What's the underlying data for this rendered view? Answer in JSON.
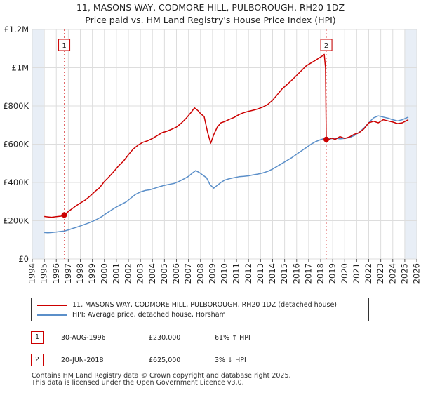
{
  "chart_data": {
    "type": "line",
    "title_line1": "11, MASONS WAY, CODMORE HILL, PULBOROUGH, RH20 1DZ",
    "title_line2": "Price paid vs. HM Land Registry's House Price Index (HPI)",
    "xlim": [
      1994,
      2026
    ],
    "ylim": [
      0,
      1200000
    ],
    "x_ticks": [
      "1994",
      "1995",
      "1996",
      "1997",
      "1998",
      "1999",
      "2000",
      "2001",
      "2002",
      "2003",
      "2004",
      "2005",
      "2006",
      "2007",
      "2008",
      "2009",
      "2010",
      "2011",
      "2012",
      "2013",
      "2014",
      "2015",
      "2016",
      "2017",
      "2018",
      "2019",
      "2020",
      "2021",
      "2022",
      "2023",
      "2024",
      "2025",
      "2026"
    ],
    "y_ticks": [
      {
        "value": 0,
        "label": "£0"
      },
      {
        "value": 200000,
        "label": "£200K"
      },
      {
        "value": 400000,
        "label": "£400K"
      },
      {
        "value": 600000,
        "label": "£600K"
      },
      {
        "value": 800000,
        "label": "£800K"
      },
      {
        "value": 1000000,
        "label": "£1M"
      },
      {
        "value": 1200000,
        "label": "£1.2M"
      }
    ],
    "grid": true,
    "series": [
      {
        "name": "11, MASONS WAY, CODMORE HILL, PULBOROUGH, RH20 1DZ (detached house)",
        "color": "#cc0000",
        "x": [
          1995.0,
          1995.3,
          1995.6,
          1996.0,
          1996.4,
          1996.66,
          1997.0,
          1997.3,
          1997.6,
          1998.0,
          1998.4,
          1998.8,
          1999.2,
          1999.6,
          2000.0,
          2000.4,
          2000.8,
          2001.2,
          2001.6,
          2002.0,
          2002.4,
          2002.8,
          2003.2,
          2003.6,
          2004.0,
          2004.4,
          2004.8,
          2005.2,
          2005.6,
          2006.0,
          2006.4,
          2006.8,
          2007.2,
          2007.5,
          2007.8,
          2008.0,
          2008.3,
          2008.6,
          2008.85,
          2009.1,
          2009.4,
          2009.7,
          2010.0,
          2010.4,
          2010.8,
          2011.2,
          2011.6,
          2012.0,
          2012.4,
          2012.8,
          2013.2,
          2013.6,
          2014.0,
          2014.4,
          2014.8,
          2015.2,
          2015.6,
          2016.0,
          2016.4,
          2016.8,
          2017.2,
          2017.6,
          2017.9,
          2018.1,
          2018.3,
          2018.4,
          2018.47,
          2018.6,
          2018.9,
          2019.2,
          2019.6,
          2020.0,
          2020.4,
          2020.8,
          2021.2,
          2021.6,
          2022.0,
          2022.4,
          2022.8,
          2023.2,
          2023.6,
          2024.0,
          2024.4,
          2024.8,
          2025.3
        ],
        "values": [
          222000,
          220000,
          218000,
          221000,
          224000,
          230000,
          248000,
          262000,
          276000,
          292000,
          308000,
          328000,
          352000,
          372000,
          405000,
          430000,
          458000,
          488000,
          512000,
          545000,
          575000,
          595000,
          610000,
          618000,
          630000,
          645000,
          660000,
          668000,
          678000,
          690000,
          710000,
          735000,
          765000,
          790000,
          775000,
          760000,
          745000,
          660000,
          605000,
          650000,
          690000,
          712000,
          718000,
          730000,
          740000,
          755000,
          765000,
          772000,
          778000,
          785000,
          795000,
          808000,
          830000,
          860000,
          890000,
          912000,
          935000,
          960000,
          985000,
          1010000,
          1025000,
          1040000,
          1052000,
          1060000,
          1070000,
          1000000,
          625000,
          620000,
          632000,
          625000,
          640000,
          630000,
          638000,
          652000,
          660000,
          680000,
          712000,
          720000,
          712000,
          728000,
          722000,
          716000,
          708000,
          712000,
          728000
        ]
      },
      {
        "name": "HPI: Average price, detached house, Horsham",
        "color": "#5b8fc9",
        "x": [
          1995.0,
          1995.3,
          1995.6,
          1996.0,
          1996.4,
          1996.7,
          1997.0,
          1997.4,
          1997.8,
          1998.2,
          1998.6,
          1999.0,
          1999.4,
          1999.8,
          2000.2,
          2000.6,
          2001.0,
          2001.4,
          2001.8,
          2002.2,
          2002.6,
          2003.0,
          2003.4,
          2003.8,
          2004.2,
          2004.6,
          2005.0,
          2005.4,
          2005.8,
          2006.2,
          2006.6,
          2007.0,
          2007.3,
          2007.6,
          2007.9,
          2008.2,
          2008.5,
          2008.8,
          2009.1,
          2009.4,
          2009.7,
          2010.0,
          2010.4,
          2010.8,
          2011.2,
          2011.6,
          2012.0,
          2012.4,
          2012.8,
          2013.2,
          2013.6,
          2014.0,
          2014.4,
          2014.8,
          2015.2,
          2015.6,
          2016.0,
          2016.4,
          2016.8,
          2017.2,
          2017.6,
          2018.0,
          2018.4,
          2018.8,
          2019.2,
          2019.6,
          2020.0,
          2020.4,
          2020.8,
          2021.2,
          2021.6,
          2022.0,
          2022.4,
          2022.8,
          2023.2,
          2023.6,
          2024.0,
          2024.4,
          2024.8,
          2025.3
        ],
        "values": [
          138000,
          137000,
          138000,
          141000,
          144000,
          146000,
          152000,
          160000,
          168000,
          177000,
          186000,
          196000,
          208000,
          222000,
          240000,
          256000,
          272000,
          285000,
          298000,
          318000,
          338000,
          350000,
          358000,
          362000,
          370000,
          378000,
          385000,
          390000,
          395000,
          405000,
          418000,
          432000,
          448000,
          462000,
          452000,
          438000,
          425000,
          388000,
          370000,
          385000,
          400000,
          412000,
          420000,
          425000,
          430000,
          432000,
          435000,
          440000,
          444000,
          450000,
          458000,
          470000,
          485000,
          500000,
          515000,
          530000,
          548000,
          565000,
          582000,
          600000,
          614000,
          624000,
          632000,
          628000,
          632000,
          628000,
          630000,
          635000,
          645000,
          662000,
          684000,
          712000,
          738000,
          748000,
          742000,
          736000,
          728000,
          722000,
          728000,
          742000
        ]
      }
    ],
    "annotations": [
      {
        "id": "1",
        "x": 1996.66,
        "y": 230000
      },
      {
        "id": "2",
        "x": 2018.47,
        "y": 625000
      }
    ]
  },
  "legend": {
    "entries": [
      {
        "label": "11, MASONS WAY, CODMORE HILL, PULBOROUGH, RH20 1DZ (detached house)",
        "color": "#cc0000"
      },
      {
        "label": "HPI: Average price, detached house, Horsham",
        "color": "#5b8fc9"
      }
    ]
  },
  "sales": [
    {
      "id": "1",
      "date": "30-AUG-1996",
      "price": "£230,000",
      "hpi": "61% ↑ HPI"
    },
    {
      "id": "2",
      "date": "20-JUN-2018",
      "price": "£625,000",
      "hpi": "3% ↓ HPI"
    }
  ],
  "footer": {
    "line1": "Contains HM Land Registry data © Crown copyright and database right 2025.",
    "line2": "This data is licensed under the Open Government Licence v3.0."
  }
}
